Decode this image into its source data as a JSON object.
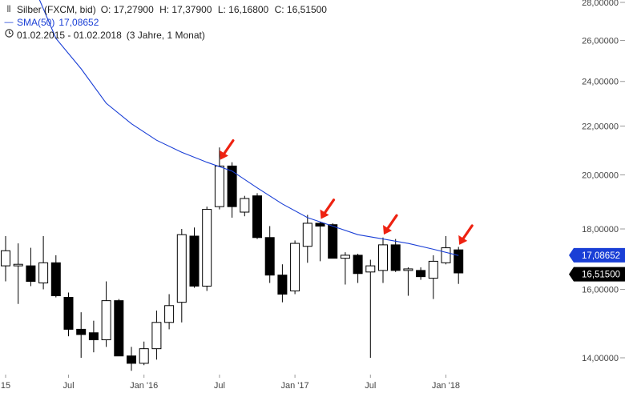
{
  "header": {
    "instrument": "Silber (FXCM, bid)",
    "open": "O: 17,27900",
    "high": "H: 17,37900",
    "low": "L: 16,16800",
    "close": "C: 16,51500",
    "sma_label": "SMA(50)",
    "sma_value": "17,08652",
    "range": "01.02.2015 - 01.02.2018",
    "range_desc": "(3 Jahre, 1 Monat)"
  },
  "colors": {
    "bull_fill": "#ffffff",
    "bear_fill": "#000000",
    "sma_line": "#1a3fd6",
    "arrow": "#ee2211",
    "sma_tag": "#1a3fd6",
    "price_tag": "#000000"
  },
  "icons": {
    "chart": "candlestick-chart-icon",
    "sma": "line-icon",
    "range": "clock-icon"
  },
  "chart_data": {
    "type": "candlestick",
    "y_scale": "log",
    "ylim": [
      13.5,
      28.0
    ],
    "y_ticks": [
      {
        "value": 14.0,
        "label": "14,00000"
      },
      {
        "value": 16.0,
        "label": "16,00000"
      },
      {
        "value": 18.0,
        "label": "18,00000"
      },
      {
        "value": 20.0,
        "label": "20,00000"
      },
      {
        "value": 22.0,
        "label": "22,00000"
      },
      {
        "value": 24.0,
        "label": "24,00000"
      },
      {
        "value": 26.0,
        "label": "26,00000"
      },
      {
        "value": 28.0,
        "label": "28,00000"
      }
    ],
    "x_ticks": [
      {
        "index": 0,
        "label": "15"
      },
      {
        "index": 5,
        "label": "Jul"
      },
      {
        "index": 11,
        "label": "Jan '16"
      },
      {
        "index": 17,
        "label": "Jul"
      },
      {
        "index": 23,
        "label": "Jan '17"
      },
      {
        "index": 29,
        "label": "Jul"
      },
      {
        "index": 35,
        "label": "Jan '18"
      }
    ],
    "candles": [
      {
        "o": 16.75,
        "h": 17.75,
        "l": 16.25,
        "c": 17.25
      },
      {
        "o": 16.75,
        "h": 17.5,
        "l": 15.55,
        "c": 16.8
      },
      {
        "o": 16.75,
        "h": 17.35,
        "l": 16.1,
        "c": 16.25
      },
      {
        "o": 16.2,
        "h": 17.75,
        "l": 16.0,
        "c": 16.85
      },
      {
        "o": 16.85,
        "h": 17.1,
        "l": 15.75,
        "c": 15.8
      },
      {
        "o": 15.75,
        "h": 15.9,
        "l": 14.6,
        "c": 14.8
      },
      {
        "o": 14.8,
        "h": 15.3,
        "l": 14.0,
        "c": 14.65
      },
      {
        "o": 14.7,
        "h": 15.05,
        "l": 14.15,
        "c": 14.5
      },
      {
        "o": 14.5,
        "h": 16.25,
        "l": 14.3,
        "c": 15.65
      },
      {
        "o": 15.65,
        "h": 15.7,
        "l": 14.05,
        "c": 14.05
      },
      {
        "o": 14.05,
        "h": 14.3,
        "l": 13.65,
        "c": 13.85
      },
      {
        "o": 13.85,
        "h": 14.45,
        "l": 13.8,
        "c": 14.25
      },
      {
        "o": 14.25,
        "h": 15.35,
        "l": 13.95,
        "c": 15.0
      },
      {
        "o": 15.0,
        "h": 15.85,
        "l": 14.8,
        "c": 15.5
      },
      {
        "o": 15.6,
        "h": 18.0,
        "l": 15.0,
        "c": 17.8
      },
      {
        "o": 17.75,
        "h": 18.05,
        "l": 16.05,
        "c": 16.1
      },
      {
        "o": 16.1,
        "h": 18.8,
        "l": 15.95,
        "c": 18.7
      },
      {
        "o": 18.8,
        "h": 21.1,
        "l": 18.7,
        "c": 20.35
      },
      {
        "o": 20.35,
        "h": 20.5,
        "l": 18.4,
        "c": 18.8
      },
      {
        "o": 18.6,
        "h": 19.2,
        "l": 18.45,
        "c": 19.1
      },
      {
        "o": 19.2,
        "h": 19.3,
        "l": 17.65,
        "c": 17.7
      },
      {
        "o": 17.7,
        "h": 18.1,
        "l": 16.2,
        "c": 16.45
      },
      {
        "o": 16.45,
        "h": 16.8,
        "l": 15.6,
        "c": 15.85
      },
      {
        "o": 15.95,
        "h": 17.6,
        "l": 15.85,
        "c": 17.5
      },
      {
        "o": 17.4,
        "h": 18.5,
        "l": 16.85,
        "c": 18.2
      },
      {
        "o": 18.2,
        "h": 18.25,
        "l": 16.9,
        "c": 18.1
      },
      {
        "o": 18.15,
        "h": 18.2,
        "l": 17.0,
        "c": 17.0
      },
      {
        "o": 17.0,
        "h": 17.2,
        "l": 16.15,
        "c": 17.1
      },
      {
        "o": 17.1,
        "h": 17.15,
        "l": 16.2,
        "c": 16.5
      },
      {
        "o": 16.55,
        "h": 16.95,
        "l": 14.0,
        "c": 16.75
      },
      {
        "o": 16.6,
        "h": 17.7,
        "l": 16.2,
        "c": 17.45
      },
      {
        "o": 17.45,
        "h": 17.65,
        "l": 16.55,
        "c": 16.6
      },
      {
        "o": 16.6,
        "h": 16.7,
        "l": 15.8,
        "c": 16.65
      },
      {
        "o": 16.6,
        "h": 16.7,
        "l": 16.3,
        "c": 16.4
      },
      {
        "o": 16.35,
        "h": 17.1,
        "l": 15.7,
        "c": 16.9
      },
      {
        "o": 16.85,
        "h": 17.75,
        "l": 16.8,
        "c": 17.35
      },
      {
        "o": 17.28,
        "h": 17.38,
        "l": 16.17,
        "c": 16.52
      }
    ],
    "sma_series": {
      "name": "SMA(50)",
      "points": [
        {
          "i": 2.6,
          "v": 28.3
        },
        {
          "i": 4.0,
          "v": 26.1
        },
        {
          "i": 6.0,
          "v": 24.6
        },
        {
          "i": 8.0,
          "v": 23.0
        },
        {
          "i": 10.0,
          "v": 22.1
        },
        {
          "i": 12.0,
          "v": 21.4
        },
        {
          "i": 14.0,
          "v": 20.9
        },
        {
          "i": 16.0,
          "v": 20.5
        },
        {
          "i": 18.0,
          "v": 20.15
        },
        {
          "i": 20.0,
          "v": 19.5
        },
        {
          "i": 22.0,
          "v": 18.9
        },
        {
          "i": 24.0,
          "v": 18.4
        },
        {
          "i": 26.0,
          "v": 18.1
        },
        {
          "i": 28.0,
          "v": 17.8
        },
        {
          "i": 30.0,
          "v": 17.65
        },
        {
          "i": 32.0,
          "v": 17.5
        },
        {
          "i": 34.0,
          "v": 17.3
        },
        {
          "i": 36.0,
          "v": 17.09
        }
      ]
    },
    "annotations": [
      {
        "type": "arrow",
        "index": 17,
        "value": 20.6
      },
      {
        "type": "arrow",
        "index": 25,
        "value": 18.35
      },
      {
        "type": "arrow",
        "index": 30,
        "value": 17.8
      },
      {
        "type": "arrow",
        "index": 36,
        "value": 17.45
      }
    ],
    "price_tags": [
      {
        "value": 17.08652,
        "label": "17,08652",
        "color": "#1a3fd6"
      },
      {
        "value": 16.515,
        "label": "16,51500",
        "color": "#000000"
      }
    ]
  }
}
